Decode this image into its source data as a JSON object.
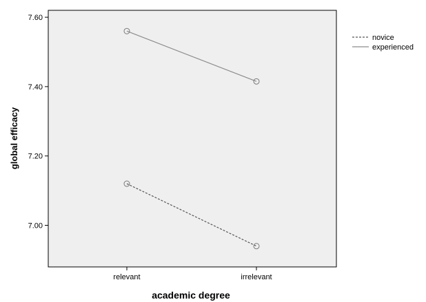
{
  "chart_data": {
    "type": "line",
    "categories": [
      "relevant",
      "irrelevant"
    ],
    "series": [
      {
        "name": "novice",
        "values": [
          7.12,
          6.94
        ],
        "line_style": "dashed",
        "color": "#555555"
      },
      {
        "name": "experienced",
        "values": [
          7.56,
          7.415
        ],
        "line_style": "solid",
        "color": "#8c8c8c"
      }
    ],
    "xlabel": "academic degree",
    "ylabel": "global efficacy",
    "yticks": [
      "7.00",
      "7.20",
      "7.40",
      "7.60"
    ],
    "ylim": [
      6.88,
      7.62
    ],
    "grid": false,
    "legend_position": "right",
    "plot_background": "#efefef",
    "marker": "open-circle"
  }
}
